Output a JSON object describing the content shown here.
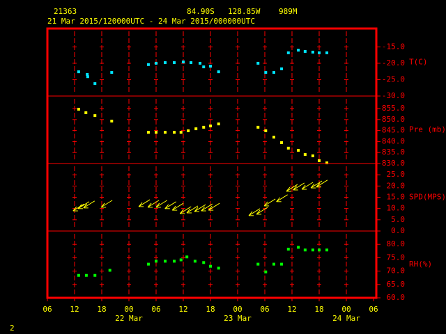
{
  "header": {
    "station": "21363",
    "lat": "84.90S",
    "lon": "128.85W",
    "elevation": "989M",
    "period": "21 Mar 2015/120000UTC - 24 Mar 2015/000000UTC",
    "page": "2"
  },
  "chart_data": [
    {
      "type": "scatter",
      "ylabel": "T(C)",
      "color": "#00e5ff",
      "x": [
        12.9,
        14.8,
        14.9,
        16.5,
        20.2,
        28.3,
        30,
        32,
        34,
        36,
        37.7,
        39.7,
        40.5,
        42,
        43.8,
        52.5,
        54.2,
        56,
        57.7,
        59.2,
        61.4,
        62.9,
        64.6,
        66,
        67.7
      ],
      "values": [
        -22.6,
        -23.4,
        -24.1,
        -26.2,
        -22.8,
        -20.4,
        -20.0,
        -19.8,
        -19.8,
        -19.6,
        -19.8,
        -20.0,
        -21.1,
        -20.9,
        -22.6,
        -20.0,
        -22.8,
        -22.8,
        -21.7,
        -16.8,
        -16.0,
        -16.4,
        -16.6,
        -16.8,
        -16.8
      ],
      "ylim": [
        -30,
        -9.4
      ],
      "yticks": [
        {
          "value": -15,
          "label": "-15.0"
        },
        {
          "value": -20,
          "label": "-20.0"
        },
        {
          "value": -25,
          "label": "-25.0"
        },
        {
          "value": -30,
          "label": "-30.0"
        }
      ]
    },
    {
      "type": "scatter",
      "ylabel": "Pre (mb)",
      "color": "#ffff00",
      "x": [
        12.9,
        14.5,
        16.5,
        20.2,
        28.3,
        30,
        32,
        34,
        35.5,
        37.1,
        38.8,
        40.5,
        42,
        43.8,
        52.5,
        54.2,
        56,
        57.7,
        59.2,
        61.4,
        62.9,
        64.6,
        66,
        67.7
      ],
      "values": [
        854.7,
        853.1,
        851.8,
        849.3,
        844.2,
        844.2,
        844.2,
        844.2,
        844.2,
        844.9,
        845.8,
        846.5,
        847.1,
        848.0,
        846.5,
        844.9,
        842.0,
        839.5,
        837.0,
        836.0,
        834.1,
        833.5,
        831.3,
        830.3
      ],
      "ylim": [
        830,
        860.7
      ],
      "yticks": [
        {
          "value": 855,
          "label": "855.0"
        },
        {
          "value": 850,
          "label": "850.0"
        },
        {
          "value": 845,
          "label": "845.0"
        },
        {
          "value": 840,
          "label": "840.0"
        },
        {
          "value": 835,
          "label": "835.0"
        },
        {
          "value": 830,
          "label": "830.0"
        }
      ]
    },
    {
      "type": "arrows",
      "ylabel": "SPD(MPS)",
      "color": "#ffff00",
      "x": [
        12.9,
        14,
        15.2,
        19.1,
        27.4,
        29.4,
        31.2,
        33.2,
        34.8,
        36.5,
        38,
        39.7,
        41.2,
        42.8,
        51.7,
        53.4,
        55.1,
        57.8,
        60,
        61.5,
        63.4,
        65.4,
        66.6
      ],
      "values": [
        10.5,
        11.5,
        11.8,
        12.1,
        12.4,
        12.1,
        12.1,
        11.5,
        10.8,
        9.3,
        9.6,
        10.2,
        10.5,
        10.8,
        8.4,
        9.0,
        12.7,
        14.6,
        19.2,
        19.8,
        20.1,
        20.7,
        21.1
      ],
      "ylim": [
        0,
        30
      ],
      "yticks": [
        {
          "value": 25,
          "label": "25.0"
        },
        {
          "value": 20,
          "label": "20.0"
        },
        {
          "value": 15,
          "label": "15.0"
        },
        {
          "value": 10,
          "label": "10.0"
        },
        {
          "value": 5,
          "label": "5.0"
        },
        {
          "value": 0,
          "label": "0.0"
        }
      ]
    },
    {
      "type": "scatter",
      "ylabel": "RH(%)",
      "color": "#00ff00",
      "x": [
        12.9,
        14.6,
        16.5,
        19.8,
        28.3,
        30,
        32,
        34,
        35.5,
        36.8,
        38.6,
        40.5,
        42,
        43.8,
        52.5,
        54.2,
        56,
        57.7,
        59.2,
        61.4,
        62.9,
        64.6,
        66,
        67.7
      ],
      "values": [
        68.4,
        68.4,
        68.4,
        70.3,
        72.6,
        73.7,
        73.7,
        73.7,
        74.2,
        75.3,
        73.7,
        73.2,
        71.8,
        71.1,
        72.6,
        69.7,
        72.6,
        72.6,
        78.2,
        78.9,
        77.9,
        77.9,
        77.9,
        77.9
      ],
      "ylim": [
        60,
        85
      ],
      "yticks": [
        {
          "value": 80,
          "label": "80.0"
        },
        {
          "value": 75,
          "label": "75.0"
        },
        {
          "value": 70,
          "label": "70.0"
        },
        {
          "value": 65,
          "label": "65.0"
        },
        {
          "value": 60,
          "label": "60.0"
        }
      ],
      "xlim": [
        6,
        78
      ],
      "xticks": [
        {
          "value": 6,
          "label": "06"
        },
        {
          "value": 12,
          "label": "12"
        },
        {
          "value": 18,
          "label": "18"
        },
        {
          "value": 24,
          "label": "00"
        },
        {
          "value": 30,
          "label": "06"
        },
        {
          "value": 36,
          "label": "12"
        },
        {
          "value": 42,
          "label": "18"
        },
        {
          "value": 48,
          "label": "00"
        },
        {
          "value": 54,
          "label": "06"
        },
        {
          "value": 60,
          "label": "12"
        },
        {
          "value": 66,
          "label": "18"
        },
        {
          "value": 72,
          "label": "00"
        },
        {
          "value": 78,
          "label": "06"
        }
      ],
      "day_labels": [
        {
          "value": 24,
          "label": "22 Mar"
        },
        {
          "value": 48,
          "label": "23 Mar"
        },
        {
          "value": 72,
          "label": "24 Mar"
        }
      ]
    }
  ]
}
